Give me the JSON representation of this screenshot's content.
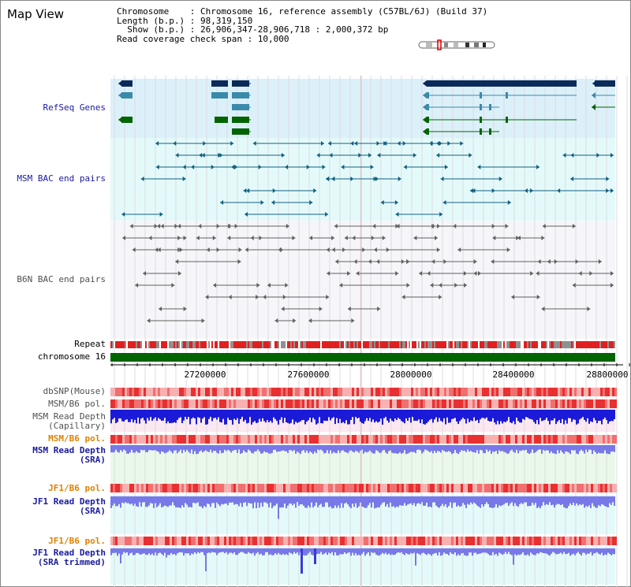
{
  "title": "Map View",
  "info": {
    "line1": "Chromosome    : Chromosome 16, reference assembly (C57BL/6J) (Build 37)",
    "line2": "Length (b.p.) : 98,319,150",
    "line3": "  Show (b.p.) : 26,906,347-28,906,718 : 2,000,372 bp",
    "line4": "Read coverage check span : 10,000"
  },
  "tracks": {
    "refseq": "RefSeq Genes",
    "msm_bac": "MSM BAC end pairs",
    "b6n_bac": "B6N BAC end pairs",
    "repeat": "Repeat",
    "chromosome": "chromosome 16",
    "dbsnp": "dbSNP(Mouse)",
    "msm_b6_pol_1": "MSM/B6 pol.",
    "msm_read_depth_cap_1": "MSM Read Depth",
    "msm_read_depth_cap_2": "(Capillary)",
    "msm_b6_pol_2": "MSM/B6 pol.",
    "msm_read_depth_sra_1": "MSM Read Depth",
    "msm_read_depth_sra_2": "(SRA)",
    "jf1_b6_pol_1": "JF1/B6 pol.",
    "jf1_read_depth_sra_1": "JF1 Read Depth",
    "jf1_read_depth_sra_2": "(SRA)",
    "jf1_b6_pol_2": "JF1/B6 pol.",
    "jf1_read_depth_trim_1": "JF1 Read Depth",
    "jf1_read_depth_trim_2": "(SRA trimmed)"
  },
  "axis_ticks": [
    "27200000",
    "27600000",
    "28000000",
    "28400000",
    "28800000"
  ],
  "colors": {
    "refseq_bg": "#dcf0fa",
    "bac_bg": "#e4fafa",
    "depth_bg": "#e4fafa",
    "chromosome": "#006400",
    "navy_gene": "#0a2a5a",
    "teal_gene": "#3a8aaa",
    "green_gene": "#006400",
    "msm_bac": "#106080",
    "b6n_bac": "#606060",
    "polymorphism": "#e83030",
    "depth_capillary": "#1a1ad8",
    "depth_sra": "#7878e8"
  }
}
